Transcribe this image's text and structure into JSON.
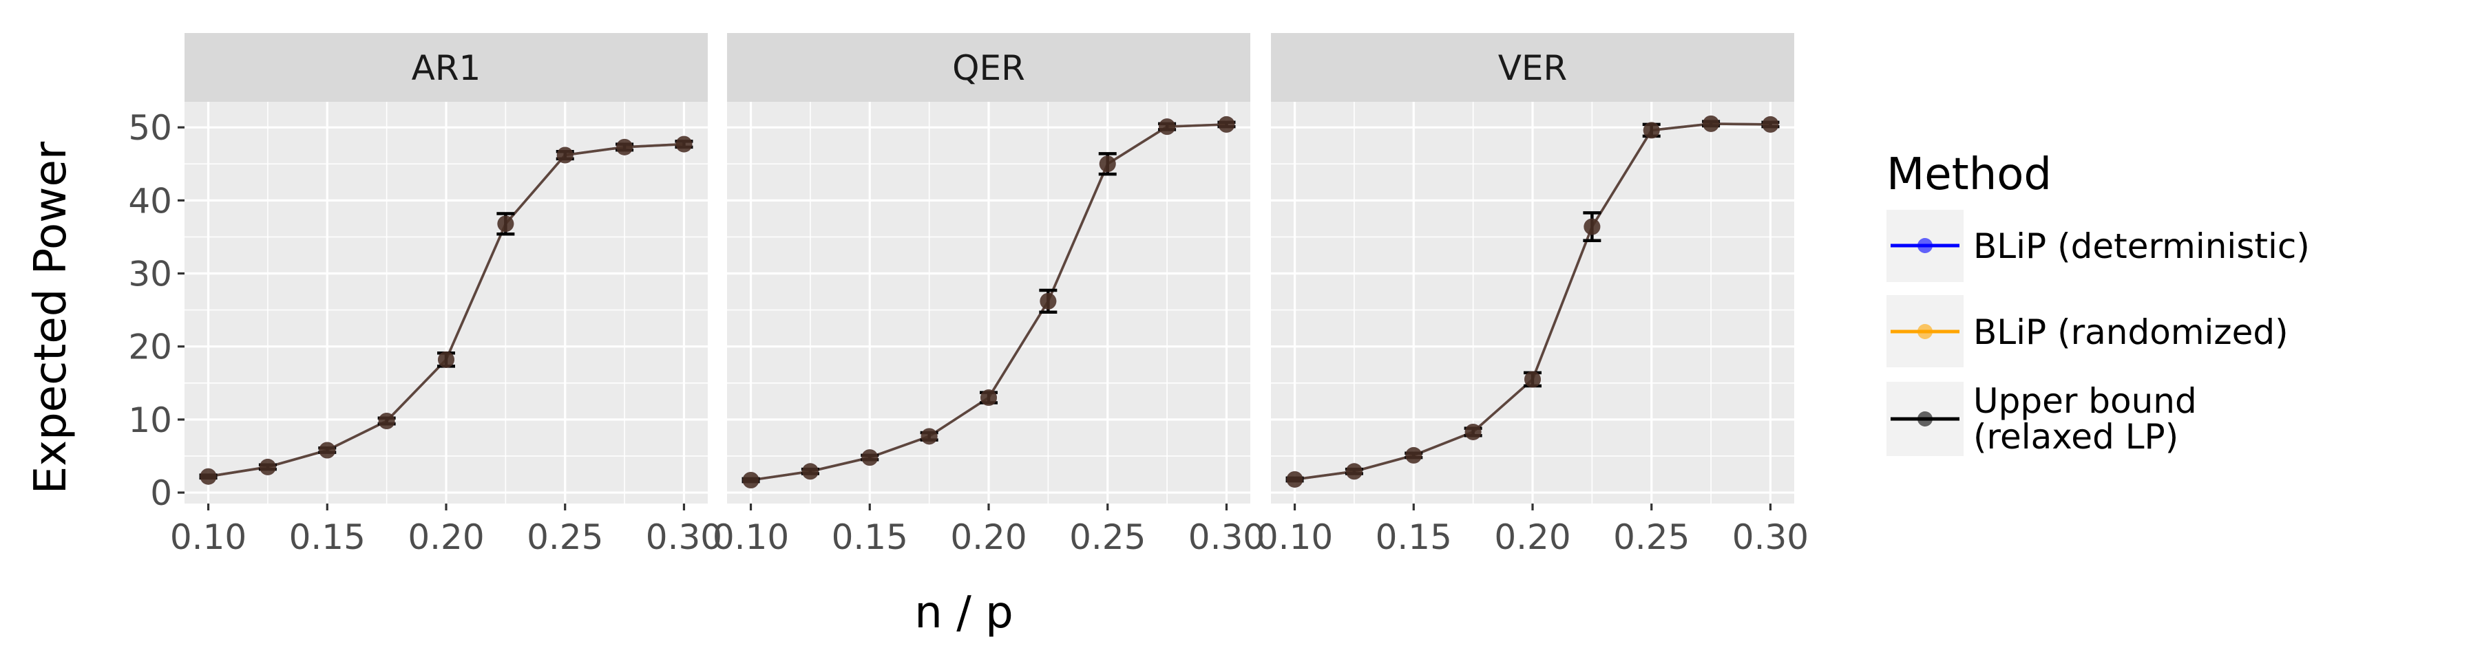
{
  "chart_data": {
    "type": "line",
    "xlabel": "n / p",
    "ylabel": "Expected Power",
    "xlim": [
      0.09,
      0.31
    ],
    "ylim": [
      -1.5,
      53.5
    ],
    "x_ticks": [
      0.1,
      0.15,
      0.2,
      0.25,
      0.3
    ],
    "x_tick_labels": [
      "0.10",
      "0.15",
      "0.20",
      "0.25",
      "0.30"
    ],
    "y_ticks": [
      0,
      10,
      20,
      30,
      40,
      50
    ],
    "y_tick_labels": [
      "0",
      "10",
      "20",
      "30",
      "40",
      "50"
    ],
    "grid": true,
    "legend": {
      "title": "Method",
      "position": "right",
      "entries": [
        {
          "label": "BLiP (deterministic)",
          "color": "#0000FF"
        },
        {
          "label": "BLiP (randomized)",
          "color": "#FFA500"
        },
        {
          "label_lines": [
            "Upper bound",
            "(relaxed LP)"
          ],
          "color": "#000000"
        }
      ]
    },
    "facets": [
      {
        "label": "AR1",
        "x": [
          0.1,
          0.125,
          0.15,
          0.175,
          0.2,
          0.225,
          0.25,
          0.275,
          0.3
        ],
        "series": [
          {
            "name": "BLiP (deterministic)",
            "values": [
              2.2,
              3.5,
              5.8,
              9.8,
              18.2,
              36.8,
              46.2,
              47.3,
              47.7
            ]
          },
          {
            "name": "BLiP (randomized)",
            "values": [
              2.2,
              3.5,
              5.8,
              9.8,
              18.2,
              36.8,
              46.2,
              47.3,
              47.7
            ]
          },
          {
            "name": "Upper bound (relaxed LP)",
            "values": [
              2.2,
              3.5,
              5.8,
              9.8,
              18.2,
              36.8,
              46.2,
              47.3,
              47.7
            ]
          }
        ],
        "error": [
          0.2,
          0.3,
          0.3,
          0.4,
          0.9,
          1.4,
          0.5,
          0.4,
          0.4
        ]
      },
      {
        "label": "QER",
        "x": [
          0.1,
          0.125,
          0.15,
          0.175,
          0.2,
          0.225,
          0.25,
          0.275,
          0.3
        ],
        "series": [
          {
            "name": "BLiP (deterministic)",
            "values": [
              1.7,
              2.9,
              4.8,
              7.7,
              13.0,
              26.2,
              45.0,
              50.1,
              50.4
            ]
          },
          {
            "name": "BLiP (randomized)",
            "values": [
              1.7,
              2.9,
              4.8,
              7.7,
              13.0,
              26.2,
              45.0,
              50.1,
              50.4
            ]
          },
          {
            "name": "Upper bound (relaxed LP)",
            "values": [
              1.7,
              2.9,
              4.8,
              7.7,
              13.0,
              26.2,
              45.0,
              50.1,
              50.4
            ]
          }
        ],
        "error": [
          0.2,
          0.3,
          0.3,
          0.5,
          0.7,
          1.5,
          1.4,
          0.4,
          0.3
        ]
      },
      {
        "label": "VER",
        "x": [
          0.1,
          0.125,
          0.15,
          0.175,
          0.2,
          0.225,
          0.25,
          0.275,
          0.3
        ],
        "series": [
          {
            "name": "BLiP (deterministic)",
            "values": [
              1.8,
              2.9,
              5.1,
              8.3,
              15.5,
              36.4,
              49.6,
              50.5,
              50.4
            ]
          },
          {
            "name": "BLiP (randomized)",
            "values": [
              1.8,
              2.9,
              5.1,
              8.3,
              15.5,
              36.4,
              49.6,
              50.5,
              50.4
            ]
          },
          {
            "name": "Upper bound (relaxed LP)",
            "values": [
              1.8,
              2.9,
              5.1,
              8.3,
              15.5,
              36.4,
              49.6,
              50.5,
              50.4
            ]
          }
        ],
        "error": [
          0.2,
          0.3,
          0.3,
          0.5,
          0.9,
          1.9,
          0.8,
          0.3,
          0.3
        ]
      }
    ]
  }
}
